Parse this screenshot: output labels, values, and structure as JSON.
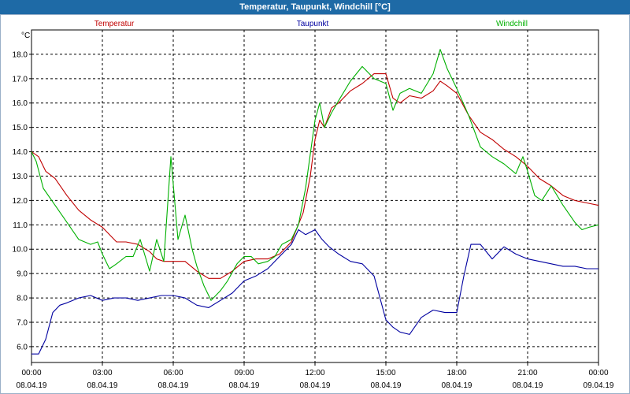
{
  "window": {
    "title": "Temperatur, Taupunkt, Windchill [°C]"
  },
  "chart_data": {
    "type": "line",
    "title": "Temperatur, Taupunkt, Windchill [°C]",
    "ylabel": "°C",
    "xlabel": "",
    "ylim": [
      5.35,
      19.0
    ],
    "xlim": [
      0,
      24
    ],
    "yticks": [
      "6.0",
      "7.0",
      "8.0",
      "9.0",
      "10.0",
      "11.0",
      "12.0",
      "13.0",
      "14.0",
      "15.0",
      "16.0",
      "17.0",
      "18.0"
    ],
    "xticks": [
      {
        "time": "00:00",
        "date": "08.04.19"
      },
      {
        "time": "03:00",
        "date": "08.04.19"
      },
      {
        "time": "06:00",
        "date": "08.04.19"
      },
      {
        "time": "09:00",
        "date": "08.04.19"
      },
      {
        "time": "12:00",
        "date": "08.04.19"
      },
      {
        "time": "15:00",
        "date": "08.04.19"
      },
      {
        "time": "18:00",
        "date": "08.04.19"
      },
      {
        "time": "21:00",
        "date": "08.04.19"
      },
      {
        "time": "00:00",
        "date": "09.04.19"
      }
    ],
    "grid": true,
    "series": [
      {
        "name": "Temperatur",
        "color": "#c00000",
        "points": [
          [
            0,
            14.0
          ],
          [
            0.3,
            13.8
          ],
          [
            0.6,
            13.2
          ],
          [
            1.0,
            12.9
          ],
          [
            1.5,
            12.2
          ],
          [
            2.0,
            11.6
          ],
          [
            2.5,
            11.2
          ],
          [
            3.0,
            10.9
          ],
          [
            3.3,
            10.6
          ],
          [
            3.6,
            10.3
          ],
          [
            4.0,
            10.3
          ],
          [
            4.5,
            10.2
          ],
          [
            5.0,
            9.9
          ],
          [
            5.3,
            9.6
          ],
          [
            5.6,
            9.5
          ],
          [
            6.0,
            9.5
          ],
          [
            6.5,
            9.5
          ],
          [
            7.0,
            9.1
          ],
          [
            7.5,
            8.8
          ],
          [
            8.0,
            8.8
          ],
          [
            8.5,
            9.1
          ],
          [
            9.0,
            9.5
          ],
          [
            9.5,
            9.6
          ],
          [
            10.0,
            9.6
          ],
          [
            10.5,
            9.8
          ],
          [
            11.0,
            10.3
          ],
          [
            11.5,
            11.5
          ],
          [
            11.8,
            13.0
          ],
          [
            12.0,
            14.5
          ],
          [
            12.2,
            15.3
          ],
          [
            12.4,
            15.0
          ],
          [
            12.7,
            15.8
          ],
          [
            13.0,
            16.0
          ],
          [
            13.5,
            16.5
          ],
          [
            14.0,
            16.8
          ],
          [
            14.5,
            17.2
          ],
          [
            15.0,
            17.2
          ],
          [
            15.3,
            16.2
          ],
          [
            15.6,
            16.0
          ],
          [
            16.0,
            16.3
          ],
          [
            16.5,
            16.2
          ],
          [
            17.0,
            16.5
          ],
          [
            17.3,
            16.9
          ],
          [
            17.6,
            16.7
          ],
          [
            18.0,
            16.4
          ],
          [
            18.5,
            15.5
          ],
          [
            19.0,
            14.8
          ],
          [
            19.5,
            14.5
          ],
          [
            20.0,
            14.1
          ],
          [
            20.5,
            13.8
          ],
          [
            21.0,
            13.4
          ],
          [
            21.5,
            12.9
          ],
          [
            22.0,
            12.6
          ],
          [
            22.5,
            12.2
          ],
          [
            23.0,
            12.0
          ],
          [
            23.5,
            11.9
          ],
          [
            24.0,
            11.8
          ]
        ]
      },
      {
        "name": "Taupunkt",
        "color": "#0000a0",
        "points": [
          [
            0,
            5.7
          ],
          [
            0.3,
            5.7
          ],
          [
            0.6,
            6.3
          ],
          [
            0.9,
            7.4
          ],
          [
            1.2,
            7.7
          ],
          [
            1.5,
            7.8
          ],
          [
            2.0,
            8.0
          ],
          [
            2.5,
            8.1
          ],
          [
            3.0,
            7.9
          ],
          [
            3.5,
            8.0
          ],
          [
            4.0,
            8.0
          ],
          [
            4.5,
            7.9
          ],
          [
            5.0,
            8.0
          ],
          [
            5.5,
            8.1
          ],
          [
            6.0,
            8.1
          ],
          [
            6.5,
            8.0
          ],
          [
            7.0,
            7.7
          ],
          [
            7.5,
            7.6
          ],
          [
            8.0,
            7.9
          ],
          [
            8.5,
            8.2
          ],
          [
            9.0,
            8.7
          ],
          [
            9.5,
            8.9
          ],
          [
            10.0,
            9.2
          ],
          [
            10.5,
            9.7
          ],
          [
            11.0,
            10.2
          ],
          [
            11.3,
            10.8
          ],
          [
            11.6,
            10.6
          ],
          [
            12.0,
            10.8
          ],
          [
            12.3,
            10.4
          ],
          [
            12.6,
            10.1
          ],
          [
            13.0,
            9.8
          ],
          [
            13.5,
            9.5
          ],
          [
            14.0,
            9.4
          ],
          [
            14.5,
            8.9
          ],
          [
            15.0,
            7.1
          ],
          [
            15.3,
            6.8
          ],
          [
            15.6,
            6.6
          ],
          [
            16.0,
            6.5
          ],
          [
            16.5,
            7.2
          ],
          [
            17.0,
            7.5
          ],
          [
            17.5,
            7.4
          ],
          [
            18.0,
            7.4
          ],
          [
            18.3,
            8.9
          ],
          [
            18.6,
            10.2
          ],
          [
            19.0,
            10.2
          ],
          [
            19.5,
            9.6
          ],
          [
            20.0,
            10.1
          ],
          [
            20.5,
            9.8
          ],
          [
            21.0,
            9.6
          ],
          [
            21.5,
            9.5
          ],
          [
            22.0,
            9.4
          ],
          [
            22.5,
            9.3
          ],
          [
            23.0,
            9.3
          ],
          [
            23.5,
            9.2
          ],
          [
            24.0,
            9.2
          ]
        ]
      },
      {
        "name": "Windchill",
        "color": "#00b000",
        "points": [
          [
            0,
            14.0
          ],
          [
            0.2,
            13.6
          ],
          [
            0.5,
            12.5
          ],
          [
            1.0,
            11.8
          ],
          [
            1.5,
            11.1
          ],
          [
            2.0,
            10.4
          ],
          [
            2.5,
            10.2
          ],
          [
            2.8,
            10.3
          ],
          [
            3.0,
            9.8
          ],
          [
            3.3,
            9.2
          ],
          [
            3.6,
            9.4
          ],
          [
            4.0,
            9.7
          ],
          [
            4.3,
            9.7
          ],
          [
            4.6,
            10.4
          ],
          [
            5.0,
            9.1
          ],
          [
            5.3,
            10.4
          ],
          [
            5.6,
            9.5
          ],
          [
            5.9,
            13.8
          ],
          [
            6.2,
            10.4
          ],
          [
            6.5,
            11.4
          ],
          [
            6.8,
            10.0
          ],
          [
            7.0,
            9.3
          ],
          [
            7.3,
            8.5
          ],
          [
            7.6,
            7.9
          ],
          [
            8.0,
            8.3
          ],
          [
            8.3,
            8.7
          ],
          [
            8.7,
            9.4
          ],
          [
            9.0,
            9.7
          ],
          [
            9.3,
            9.7
          ],
          [
            9.6,
            9.4
          ],
          [
            10.0,
            9.5
          ],
          [
            10.3,
            9.7
          ],
          [
            10.6,
            10.2
          ],
          [
            11.0,
            10.4
          ],
          [
            11.3,
            11.0
          ],
          [
            11.6,
            12.5
          ],
          [
            12.0,
            15.3
          ],
          [
            12.2,
            16.0
          ],
          [
            12.4,
            15.0
          ],
          [
            12.7,
            15.6
          ],
          [
            13.0,
            16.1
          ],
          [
            13.5,
            16.9
          ],
          [
            14.0,
            17.5
          ],
          [
            14.5,
            17.0
          ],
          [
            15.0,
            16.8
          ],
          [
            15.3,
            15.7
          ],
          [
            15.6,
            16.4
          ],
          [
            16.0,
            16.6
          ],
          [
            16.5,
            16.4
          ],
          [
            17.0,
            17.2
          ],
          [
            17.3,
            18.2
          ],
          [
            17.6,
            17.4
          ],
          [
            18.0,
            16.6
          ],
          [
            18.5,
            15.5
          ],
          [
            19.0,
            14.2
          ],
          [
            19.5,
            13.8
          ],
          [
            20.0,
            13.5
          ],
          [
            20.5,
            13.1
          ],
          [
            20.8,
            13.8
          ],
          [
            21.0,
            13.2
          ],
          [
            21.3,
            12.2
          ],
          [
            21.6,
            12.0
          ],
          [
            22.0,
            12.6
          ],
          [
            22.5,
            11.8
          ],
          [
            23.0,
            11.1
          ],
          [
            23.3,
            10.8
          ],
          [
            23.6,
            10.9
          ],
          [
            24.0,
            11.0
          ]
        ]
      }
    ]
  }
}
